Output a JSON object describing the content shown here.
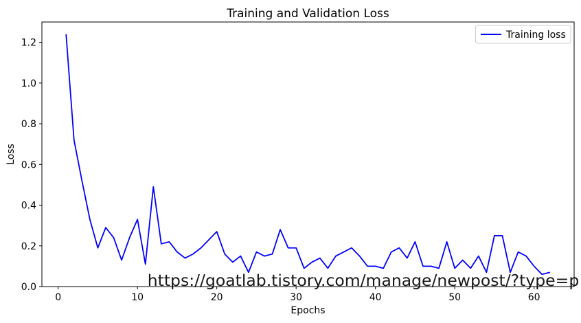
{
  "figure": {
    "watermark": {
      "text": "https://goatlab.tistory.com/manage/newpost/?type=p",
      "color": "#20b2aa"
    }
  },
  "legend": {
    "position": "upper right",
    "entries": [
      {
        "label": "Training loss",
        "color": "#0000ff"
      }
    ]
  },
  "chart_data": {
    "type": "line",
    "title": "Training and Validation Loss",
    "xlabel": "Epochs",
    "ylabel": "Loss",
    "xlim": [
      -2.05,
      65.05
    ],
    "ylim": [
      0,
      1.3
    ],
    "xticks": [
      0,
      10,
      20,
      30,
      40,
      50,
      60
    ],
    "xtick_labels": [
      "0",
      "10",
      "20",
      "30",
      "40",
      "50",
      "60"
    ],
    "yticks": [
      0,
      0.2,
      0.4,
      0.6,
      0.8,
      1.0,
      1.2
    ],
    "ytick_labels": [
      "0.0",
      "0.2",
      "0.4",
      "0.6",
      "0.8",
      "1.0",
      "1.2"
    ],
    "grid": false,
    "legend_position": "upper right",
    "axes_color": "#000000",
    "background": "#ffffff",
    "series": [
      {
        "name": "Training loss",
        "color": "#0000ff",
        "x": [
          1,
          2,
          3,
          4,
          5,
          6,
          7,
          8,
          9,
          10,
          11,
          12,
          13,
          14,
          15,
          16,
          17,
          18,
          19,
          20,
          21,
          22,
          23,
          24,
          25,
          26,
          27,
          28,
          29,
          30,
          31,
          32,
          33,
          34,
          35,
          36,
          37,
          38,
          39,
          40,
          41,
          42,
          43,
          44,
          45,
          46,
          47,
          48,
          49,
          50,
          51,
          52,
          53,
          54,
          55,
          56,
          57,
          58,
          59,
          60,
          61,
          62
        ],
        "values": [
          1.24,
          0.72,
          0.52,
          0.33,
          0.19,
          0.29,
          0.24,
          0.13,
          0.24,
          0.33,
          0.11,
          0.49,
          0.21,
          0.22,
          0.17,
          0.14,
          0.16,
          0.19,
          0.23,
          0.27,
          0.16,
          0.12,
          0.15,
          0.07,
          0.17,
          0.15,
          0.16,
          0.28,
          0.19,
          0.19,
          0.09,
          0.12,
          0.14,
          0.09,
          0.15,
          0.17,
          0.19,
          0.15,
          0.1,
          0.1,
          0.09,
          0.17,
          0.19,
          0.14,
          0.22,
          0.1,
          0.1,
          0.09,
          0.22,
          0.09,
          0.13,
          0.09,
          0.15,
          0.07,
          0.25,
          0.25,
          0.07,
          0.17,
          0.15,
          0.1,
          0.06,
          0.07
        ]
      }
    ]
  }
}
